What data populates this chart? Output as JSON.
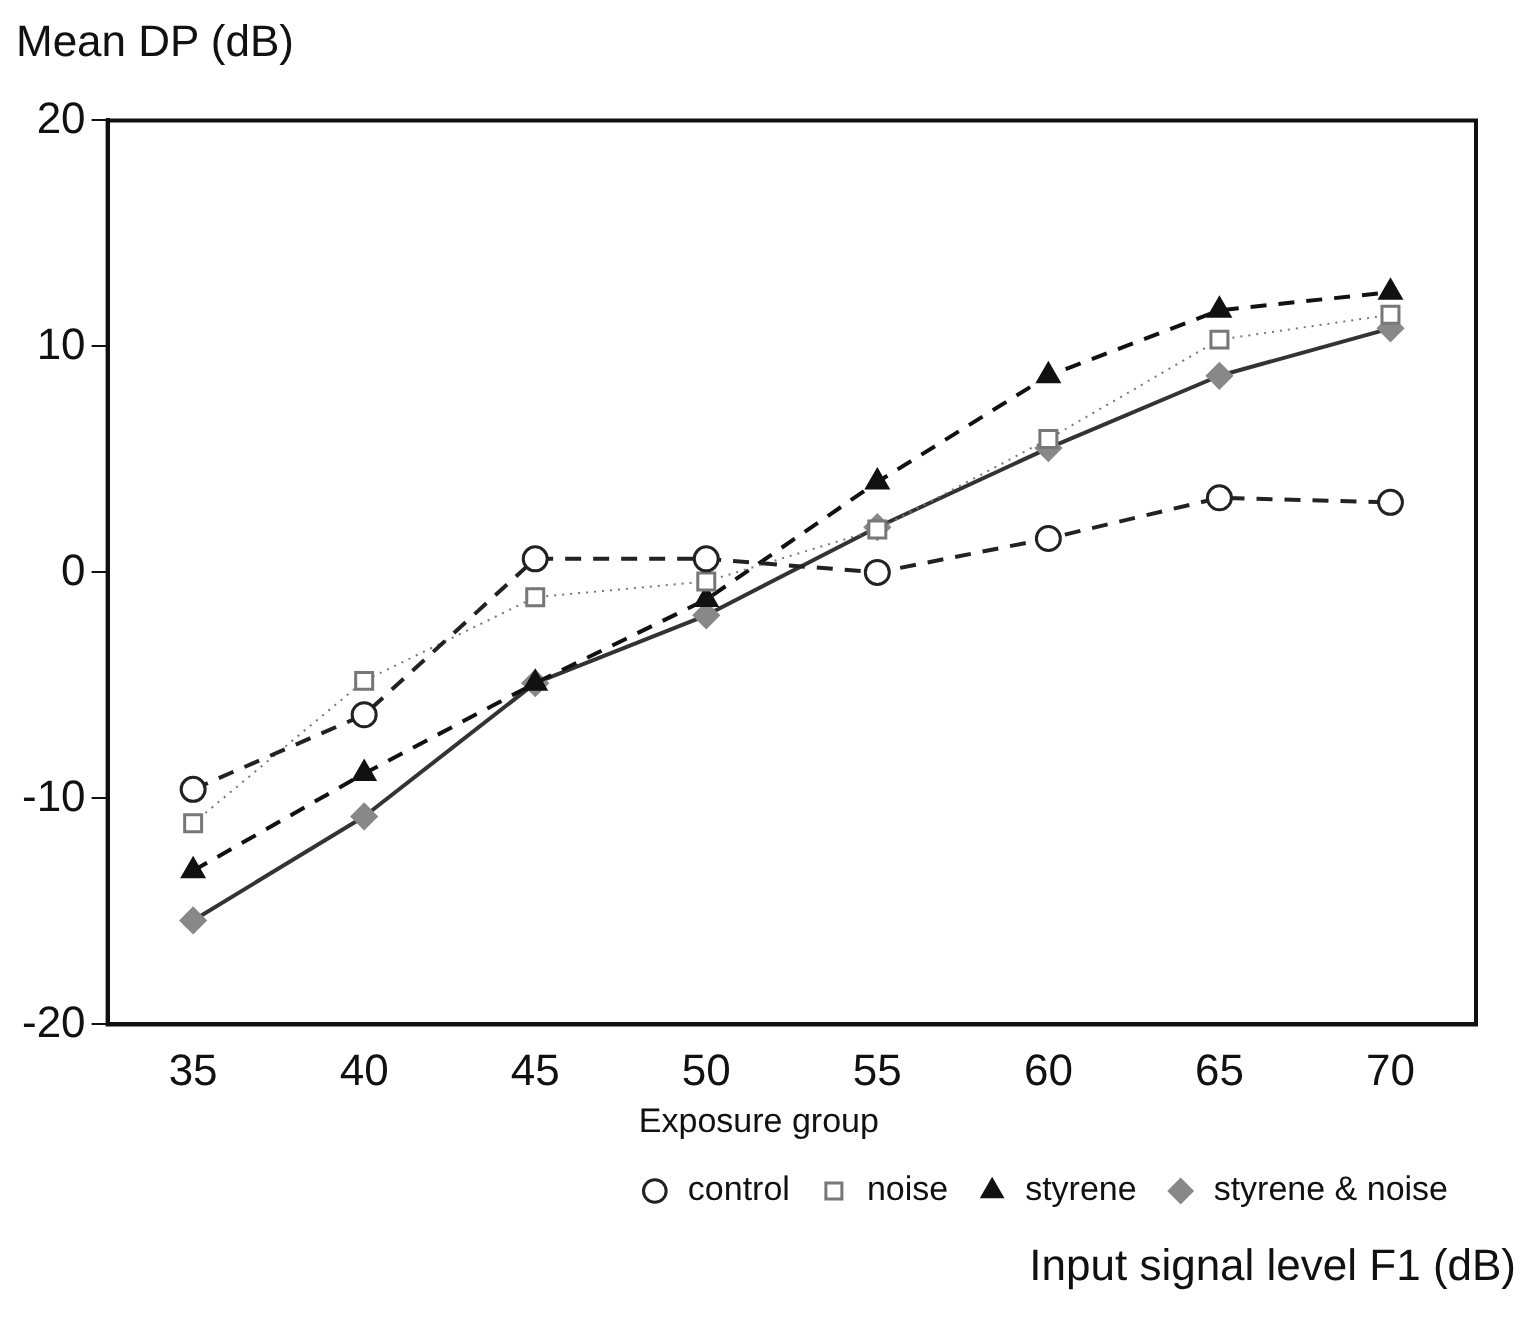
{
  "chart_data": {
    "type": "line",
    "ylabel": "Mean DP (dB)",
    "xlabel": "Input signal level F1 (dB)",
    "legend_title": "Exposure group",
    "legend": "bottom right",
    "grid": false,
    "categories": [
      "35",
      "40",
      "45",
      "50",
      "55",
      "60",
      "65",
      "70"
    ],
    "ylim": [
      -20,
      20
    ],
    "yticks": [
      -20,
      -10,
      0,
      10,
      20
    ],
    "series": [
      {
        "name": "control",
        "color": "#222222",
        "marker": "circle",
        "line_style": "dashed",
        "values": [
          -9.6,
          -6.3,
          0.6,
          0.6,
          0.0,
          1.5,
          3.3,
          3.1
        ]
      },
      {
        "name": "noise",
        "color": "#777777",
        "marker": "square",
        "line_style": "dotted",
        "values": [
          -11.1,
          -4.8,
          -1.1,
          -0.4,
          1.9,
          5.9,
          10.3,
          11.4
        ]
      },
      {
        "name": "styrene",
        "color": "#111111",
        "marker": "triangle",
        "line_style": "dashed",
        "values": [
          -13.2,
          -8.9,
          -4.9,
          -1.2,
          4.0,
          8.7,
          11.6,
          12.4
        ]
      },
      {
        "name": "styrene & noise",
        "color": "#888888",
        "marker": "diamond",
        "line_style": "solid",
        "values": [
          -15.4,
          -10.8,
          -4.9,
          -1.9,
          2.0,
          5.5,
          8.7,
          10.8
        ]
      }
    ]
  }
}
